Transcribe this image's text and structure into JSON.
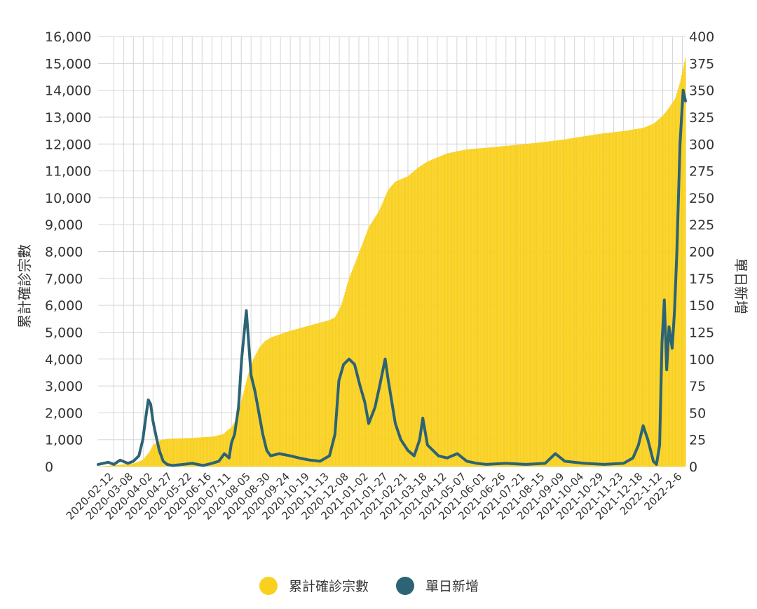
{
  "chart_data": {
    "type": "bar+line",
    "title": "",
    "ylabel_left": "累計確診宗數",
    "ylabel_right": "單日新增",
    "ylim_left": [
      0,
      16000
    ],
    "ylim_right": [
      0,
      400
    ],
    "yticks_left": [
      "0",
      "1,000",
      "2,000",
      "3,000",
      "4,000",
      "5,000",
      "6,000",
      "7,000",
      "8,000",
      "9,000",
      "10,000",
      "11,000",
      "12,000",
      "13,000",
      "14,000",
      "15,000",
      "16,000"
    ],
    "yticks_right": [
      "0",
      "25",
      "50",
      "75",
      "100",
      "125",
      "150",
      "175",
      "200",
      "225",
      "250",
      "275",
      "300",
      "325",
      "350",
      "375",
      "400"
    ],
    "xticks": [
      "2020-02-12",
      "2020-03-08",
      "2020-04-02",
      "2020-04-27",
      "2020-05-22",
      "2020-06-16",
      "2020-07-11",
      "2020-08-05",
      "2020-08-30",
      "2020-09-24",
      "2020-10-19",
      "2020-11-13",
      "2020-12-08",
      "2021-01-02",
      "2021-01-27",
      "2021-02-21",
      "2021-03-18",
      "2021-04-12",
      "2021-05-07",
      "2021-06-01",
      "2021-06-26",
      "2021-07-21",
      "2021-08-15",
      "2021-09-09",
      "2021-10-04",
      "2021-10-29",
      "2021-11-23",
      "2021-12-18",
      "2022-1-12",
      "2022-2-6"
    ],
    "x_start": "2020-01-23",
    "x_end": "2022-02-10",
    "legend_position": "bottom",
    "series": [
      {
        "name": "累計確診宗數",
        "kind": "bar",
        "axis": "left",
        "color": "#F9D01E",
        "points": [
          [
            "2020-01-23",
            1
          ],
          [
            "2020-02-12",
            50
          ],
          [
            "2020-03-08",
            110
          ],
          [
            "2020-03-20",
            250
          ],
          [
            "2020-03-28",
            530
          ],
          [
            "2020-04-02",
            800
          ],
          [
            "2020-04-12",
            990
          ],
          [
            "2020-04-20",
            1030
          ],
          [
            "2020-04-27",
            1038
          ],
          [
            "2020-05-22",
            1065
          ],
          [
            "2020-06-16",
            1110
          ],
          [
            "2020-06-30",
            1200
          ],
          [
            "2020-07-11",
            1470
          ],
          [
            "2020-07-18",
            1800
          ],
          [
            "2020-07-25",
            2600
          ],
          [
            "2020-08-01",
            3400
          ],
          [
            "2020-08-08",
            4000
          ],
          [
            "2020-08-15",
            4400
          ],
          [
            "2020-08-22",
            4650
          ],
          [
            "2020-08-30",
            4800
          ],
          [
            "2020-09-24",
            5050
          ],
          [
            "2020-10-19",
            5250
          ],
          [
            "2020-11-13",
            5450
          ],
          [
            "2020-11-20",
            5550
          ],
          [
            "2020-11-28",
            6000
          ],
          [
            "2020-12-08",
            7000
          ],
          [
            "2020-12-20",
            7900
          ],
          [
            "2021-01-02",
            8900
          ],
          [
            "2021-01-15",
            9500
          ],
          [
            "2021-01-27",
            10300
          ],
          [
            "2021-02-05",
            10600
          ],
          [
            "2021-02-21",
            10800
          ],
          [
            "2021-03-05",
            11100
          ],
          [
            "2021-03-18",
            11350
          ],
          [
            "2021-04-12",
            11650
          ],
          [
            "2021-05-07",
            11800
          ],
          [
            "2021-06-01",
            11860
          ],
          [
            "2021-06-26",
            11930
          ],
          [
            "2021-07-21",
            12000
          ],
          [
            "2021-08-15",
            12080
          ],
          [
            "2021-09-09",
            12170
          ],
          [
            "2021-10-04",
            12290
          ],
          [
            "2021-10-29",
            12400
          ],
          [
            "2021-11-23",
            12480
          ],
          [
            "2021-12-18",
            12600
          ],
          [
            "2021-12-31",
            12750
          ],
          [
            "2022-01-12",
            13050
          ],
          [
            "2022-01-20",
            13350
          ],
          [
            "2022-01-28",
            13700
          ],
          [
            "2022-02-03",
            14300
          ],
          [
            "2022-02-10",
            15200
          ]
        ]
      },
      {
        "name": "單日新增",
        "kind": "line",
        "axis": "right",
        "color": "#2C6375",
        "points": [
          [
            "2020-01-23",
            2
          ],
          [
            "2020-02-05",
            4
          ],
          [
            "2020-02-12",
            2
          ],
          [
            "2020-02-20",
            6
          ],
          [
            "2020-03-01",
            3
          ],
          [
            "2020-03-08",
            5
          ],
          [
            "2020-03-15",
            10
          ],
          [
            "2020-03-20",
            25
          ],
          [
            "2020-03-24",
            47
          ],
          [
            "2020-03-27",
            62
          ],
          [
            "2020-03-30",
            58
          ],
          [
            "2020-04-02",
            42
          ],
          [
            "2020-04-06",
            28
          ],
          [
            "2020-04-10",
            15
          ],
          [
            "2020-04-15",
            5
          ],
          [
            "2020-04-20",
            2
          ],
          [
            "2020-04-27",
            1
          ],
          [
            "2020-05-10",
            2
          ],
          [
            "2020-05-22",
            3
          ],
          [
            "2020-06-05",
            1
          ],
          [
            "2020-06-16",
            3
          ],
          [
            "2020-06-25",
            5
          ],
          [
            "2020-07-02",
            12
          ],
          [
            "2020-07-08",
            8
          ],
          [
            "2020-07-11",
            22
          ],
          [
            "2020-07-15",
            30
          ],
          [
            "2020-07-20",
            55
          ],
          [
            "2020-07-24",
            100
          ],
          [
            "2020-07-28",
            130
          ],
          [
            "2020-07-30",
            145
          ],
          [
            "2020-08-01",
            125
          ],
          [
            "2020-08-05",
            85
          ],
          [
            "2020-08-10",
            70
          ],
          [
            "2020-08-15",
            50
          ],
          [
            "2020-08-20",
            30
          ],
          [
            "2020-08-25",
            15
          ],
          [
            "2020-08-30",
            10
          ],
          [
            "2020-09-10",
            12
          ],
          [
            "2020-09-24",
            10
          ],
          [
            "2020-10-05",
            8
          ],
          [
            "2020-10-19",
            6
          ],
          [
            "2020-11-01",
            5
          ],
          [
            "2020-11-13",
            10
          ],
          [
            "2020-11-20",
            30
          ],
          [
            "2020-11-25",
            80
          ],
          [
            "2020-12-01",
            95
          ],
          [
            "2020-12-08",
            100
          ],
          [
            "2020-12-15",
            95
          ],
          [
            "2020-12-22",
            75
          ],
          [
            "2020-12-28",
            60
          ],
          [
            "2021-01-02",
            40
          ],
          [
            "2021-01-10",
            55
          ],
          [
            "2021-01-16",
            75
          ],
          [
            "2021-01-23",
            100
          ],
          [
            "2021-01-27",
            80
          ],
          [
            "2021-02-05",
            40
          ],
          [
            "2021-02-12",
            25
          ],
          [
            "2021-02-21",
            15
          ],
          [
            "2021-03-01",
            10
          ],
          [
            "2021-03-08",
            25
          ],
          [
            "2021-03-12",
            45
          ],
          [
            "2021-03-18",
            20
          ],
          [
            "2021-04-01",
            10
          ],
          [
            "2021-04-12",
            8
          ],
          [
            "2021-04-25",
            12
          ],
          [
            "2021-05-07",
            5
          ],
          [
            "2021-05-20",
            3
          ],
          [
            "2021-06-01",
            2
          ],
          [
            "2021-06-26",
            3
          ],
          [
            "2021-07-21",
            2
          ],
          [
            "2021-08-15",
            3
          ],
          [
            "2021-08-28",
            12
          ],
          [
            "2021-09-09",
            5
          ],
          [
            "2021-10-04",
            3
          ],
          [
            "2021-10-29",
            2
          ],
          [
            "2021-11-23",
            3
          ],
          [
            "2021-12-05",
            8
          ],
          [
            "2021-12-12",
            20
          ],
          [
            "2021-12-18",
            38
          ],
          [
            "2021-12-24",
            25
          ],
          [
            "2021-12-31",
            5
          ],
          [
            "2022-01-04",
            2
          ],
          [
            "2022-01-08",
            20
          ],
          [
            "2022-01-11",
            115
          ],
          [
            "2022-01-14",
            155
          ],
          [
            "2022-01-17",
            90
          ],
          [
            "2022-01-20",
            130
          ],
          [
            "2022-01-24",
            110
          ],
          [
            "2022-01-27",
            145
          ],
          [
            "2022-01-30",
            200
          ],
          [
            "2022-02-03",
            300
          ],
          [
            "2022-02-07",
            350
          ],
          [
            "2022-02-10",
            340
          ]
        ]
      }
    ]
  }
}
